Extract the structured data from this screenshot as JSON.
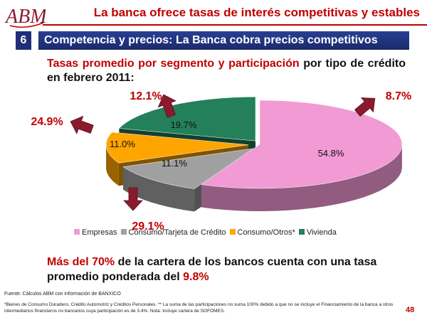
{
  "logo": {
    "text": "ABM"
  },
  "header": {
    "title": "La banca ofrece tasas de interés competitivas y estables"
  },
  "section": {
    "number": "6",
    "title": "Competencia y precios: La Banca cobra precios competitivos"
  },
  "subtitle": {
    "part1": "Tasas promedio por segmento y participación",
    "part2": " por tipo de crédito en febrero 2011:"
  },
  "chart_data": {
    "type": "pie",
    "title": "",
    "slices": [
      {
        "name": "Empresas",
        "share": 54.8,
        "share_label": "54.8%",
        "rate_label": "8.7%",
        "color": "#f29ad4"
      },
      {
        "name": "Consumo/Tarjeta de Crédito",
        "share": 11.1,
        "share_label": "11.1%",
        "rate_label": "29.1%",
        "color": "#a0a0a0"
      },
      {
        "name": "Consumo/Otros*",
        "share": 11.0,
        "share_label": "11.0%",
        "rate_label": "24.9%",
        "color": "#ffa500"
      },
      {
        "name": "Vivienda",
        "share": 19.7,
        "share_label": "19.7%",
        "rate_label": "12.1%",
        "color": "#23805a"
      }
    ],
    "legend_position": "bottom"
  },
  "conclusion": {
    "part1": "Más del 70%",
    "part2": " de la cartera de los bancos cuenta con una tasa promedio ponderada del ",
    "part3": "9.8%"
  },
  "source": "Fuente:  Cálculos ABM con información de BANXICO",
  "footnote": "*Bienes de Consumo Duradero, Crédito Automotriz y Créditos Personales. ** La suma de las participaciones no suma 100% debido a que no se incluye el Financiamiento de la banca a otros intermediarios financieros no bancarios cuya participación es de  3.4%.  Nota: Incluye cartera de SOFOMES.",
  "page_number": "48",
  "colors": {
    "accent": "#c00000",
    "section_blue": "#1f2f7a",
    "arrow": "#8b1a2e"
  }
}
